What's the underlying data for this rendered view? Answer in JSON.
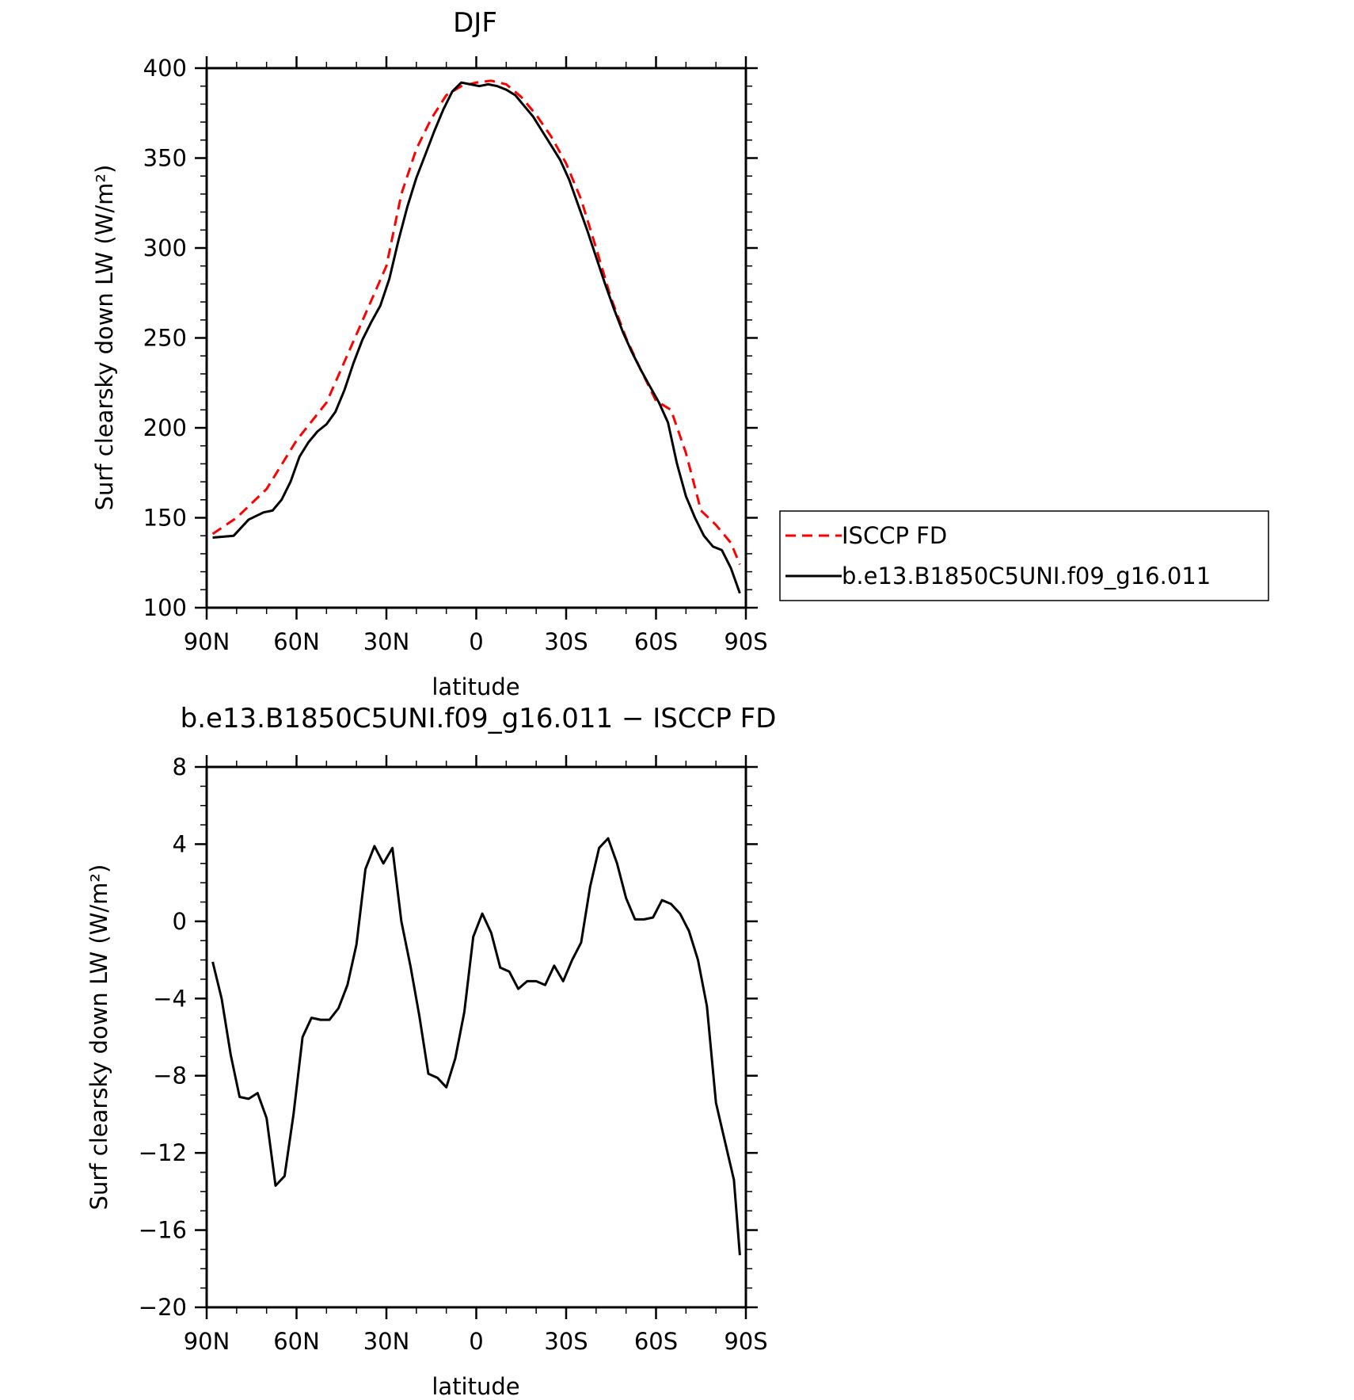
{
  "chart_data": [
    {
      "type": "line",
      "title": "DJF",
      "xlabel": "latitude",
      "ylabel": "Surf clearsky down LW (W/m²)",
      "xlim": [
        -90,
        90
      ],
      "ylim": [
        100,
        400
      ],
      "xticks": [
        -90,
        -60,
        -30,
        0,
        30,
        60,
        90
      ],
      "xtick_labels": [
        "90N",
        "60N",
        "30N",
        "0",
        "30S",
        "60S",
        "90S"
      ],
      "yticks": [
        100,
        150,
        200,
        250,
        300,
        350,
        400
      ],
      "ytick_labels": [
        "100",
        "150",
        "200",
        "250",
        "300",
        "350",
        "400"
      ],
      "legend_position": "right-outside",
      "series": [
        {
          "name": "ISCCP FD",
          "color": "#ff0000",
          "dash": "dashed",
          "x": [
            -88,
            -80,
            -70,
            -60,
            -50,
            -40,
            -30,
            -25,
            -20,
            -15,
            -10,
            -5,
            0,
            5,
            10,
            15,
            20,
            25,
            30,
            35,
            40,
            45,
            50,
            55,
            60,
            65,
            70,
            75,
            80,
            85,
            88
          ],
          "y": [
            141,
            150,
            166,
            193,
            214,
            252,
            290,
            330,
            355,
            372,
            385,
            390,
            392,
            393,
            391,
            384,
            374,
            362,
            347,
            327,
            300,
            272,
            250,
            232,
            215,
            210,
            186,
            154,
            146,
            136,
            124
          ]
        },
        {
          "name": "b.e13.B1850C5UNI.f09_g16.011",
          "color": "#000000",
          "dash": "solid",
          "x": [
            -88,
            -81,
            -76,
            -71,
            -68,
            -65,
            -62,
            -59,
            -56,
            -53,
            -50,
            -47,
            -44,
            -41,
            -38,
            -35,
            -32,
            -29,
            -26,
            -23,
            -20,
            -17,
            -14,
            -11,
            -8,
            -5,
            -2,
            1,
            4,
            7,
            10,
            13,
            16,
            19,
            22,
            25,
            28,
            31,
            34,
            37,
            40,
            43,
            46,
            49,
            52,
            55,
            58,
            61,
            64,
            67,
            70,
            73,
            76,
            79,
            82,
            85,
            88
          ],
          "y": [
            139,
            140,
            149,
            153,
            154,
            160,
            170,
            184,
            192,
            198,
            202,
            209,
            221,
            236,
            249,
            259,
            268,
            283,
            304,
            323,
            339,
            352,
            365,
            377,
            387,
            392,
            391,
            390,
            391,
            390,
            388,
            385,
            379,
            373,
            365,
            357,
            349,
            338,
            324,
            310,
            295,
            280,
            266,
            253,
            242,
            232,
            223,
            214,
            203,
            180,
            162,
            150,
            140,
            134,
            132,
            122,
            108
          ]
        }
      ]
    },
    {
      "type": "line",
      "title": "b.e13.B1850C5UNI.f09_g16.011 − ISCCP FD",
      "xlabel": "latitude",
      "ylabel": "Surf clearsky down LW (W/m²)",
      "xlim": [
        -90,
        90
      ],
      "ylim": [
        -20,
        8
      ],
      "xticks": [
        -90,
        -60,
        -30,
        0,
        30,
        60,
        90
      ],
      "xtick_labels": [
        "90N",
        "60N",
        "30N",
        "0",
        "30S",
        "60S",
        "90S"
      ],
      "yticks": [
        8,
        4,
        0,
        -4,
        -8,
        -12,
        -16,
        -20
      ],
      "ytick_labels": [
        "8",
        "4",
        "0",
        "−4",
        "−8",
        "−12",
        "−16",
        "−20"
      ],
      "series": [
        {
          "color": "#000000",
          "dash": "solid",
          "x": [
            -88,
            -85,
            -82,
            -79,
            -76,
            -73,
            -70,
            -67,
            -64,
            -61,
            -58,
            -55,
            -52,
            -49,
            -46,
            -43,
            -40,
            -37,
            -34,
            -31,
            -28,
            -25,
            -22,
            -19,
            -16,
            -13,
            -10,
            -7,
            -4,
            -1,
            2,
            5,
            8,
            11,
            14,
            17,
            20,
            23,
            26,
            29,
            32,
            35,
            38,
            41,
            44,
            47,
            50,
            53,
            56,
            59,
            62,
            65,
            68,
            71,
            74,
            77,
            80,
            83,
            86,
            88
          ],
          "y": [
            -2.1,
            -4.0,
            -6.9,
            -9.1,
            -9.2,
            -8.9,
            -10.2,
            -13.7,
            -13.2,
            -10.0,
            -6.0,
            -5.0,
            -5.1,
            -5.1,
            -4.5,
            -3.3,
            -1.2,
            2.7,
            3.9,
            3.0,
            3.8,
            0.0,
            -2.3,
            -4.9,
            -7.9,
            -8.1,
            -8.6,
            -7.1,
            -4.7,
            -0.8,
            0.4,
            -0.6,
            -2.4,
            -2.6,
            -3.5,
            -3.1,
            -3.1,
            -3.3,
            -2.3,
            -3.1,
            -2.0,
            -1.1,
            1.8,
            3.8,
            4.3,
            3.0,
            1.2,
            0.1,
            0.1,
            0.2,
            1.1,
            0.9,
            0.4,
            -0.5,
            -2.0,
            -4.4,
            -9.4,
            -11.4,
            -13.4,
            -17.3
          ]
        }
      ]
    }
  ]
}
